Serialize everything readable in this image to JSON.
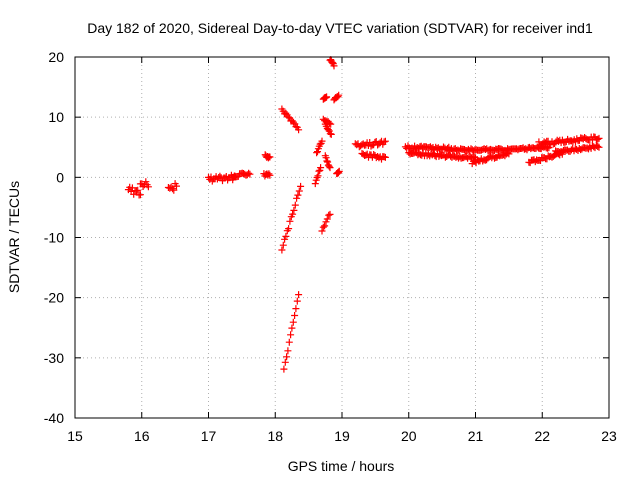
{
  "chart_data": {
    "type": "scatter",
    "title": "Day 182 of 2020, Sidereal Day-to-day VTEC variation (SDTVAR) for receiver ind1",
    "xlabel": "GPS time / hours",
    "ylabel": "SDTVAR / TECUs",
    "xlim": [
      15,
      23
    ],
    "ylim": [
      -40,
      20
    ],
    "xticks": [
      15,
      16,
      17,
      18,
      19,
      20,
      21,
      22,
      23
    ],
    "yticks": [
      -40,
      -30,
      -20,
      -10,
      0,
      10,
      20
    ],
    "xtick_labels": [
      "15",
      "16",
      "17",
      "18",
      "19",
      "20",
      "21",
      "22",
      "23"
    ],
    "ytick_labels": [
      "-40",
      "-30",
      "-20",
      "-10",
      "0",
      "10",
      "20"
    ],
    "grid": true,
    "marker": "+",
    "marker_color": "#ff0000",
    "series": [
      {
        "name": "ind1",
        "segments": [
          {
            "x": [
              15.8,
              15.98
            ],
            "y": [
              -2.0,
              -2.6
            ],
            "jitter": 1.2
          },
          {
            "x": [
              15.98,
              16.1
            ],
            "y": [
              -1.0,
              -1.3
            ],
            "jitter": 1.0
          },
          {
            "x": [
              16.4,
              16.52
            ],
            "y": [
              -1.0,
              -1.6
            ],
            "jitter": 1.5
          },
          {
            "x": [
              17.0,
              17.4
            ],
            "y": [
              -0.3,
              0.0
            ],
            "jitter": 0.8
          },
          {
            "x": [
              17.35,
              17.62
            ],
            "y": [
              0.0,
              0.8
            ],
            "jitter": 0.6
          },
          {
            "x": [
              17.83,
              17.92
            ],
            "y": [
              0.6,
              0.8
            ],
            "jitter": 1.2
          },
          {
            "x": [
              17.85,
              17.92
            ],
            "y": [
              3.6,
              3.2
            ],
            "jitter": 0.4
          },
          {
            "x": [
              18.1,
              18.35
            ],
            "y": [
              11.2,
              8.0
            ],
            "jitter": 0.4
          },
          {
            "x": [
              18.1,
              18.38
            ],
            "y": [
              -12.0,
              -1.5
            ],
            "jitter": 0.6
          },
          {
            "x": [
              18.13,
              18.35
            ],
            "y": [
              -32.0,
              -19.5
            ],
            "jitter": 0.5
          },
          {
            "x": [
              18.6,
              18.68
            ],
            "y": [
              -1.0,
              1.8
            ],
            "jitter": 0.4
          },
          {
            "x": [
              18.62,
              18.7
            ],
            "y": [
              4.0,
              6.2
            ],
            "jitter": 0.4
          },
          {
            "x": [
              18.7,
              18.82
            ],
            "y": [
              -9.0,
              -6.0
            ],
            "jitter": 0.5
          },
          {
            "x": [
              18.72,
              18.83
            ],
            "y": [
              9.6,
              9.0
            ],
            "jitter": 0.3
          },
          {
            "x": [
              18.75,
              18.84
            ],
            "y": [
              8.8,
              7.0
            ],
            "jitter": 0.3
          },
          {
            "x": [
              18.75,
              18.82
            ],
            "y": [
              3.5,
              1.5
            ],
            "jitter": 0.3
          },
          {
            "x": [
              18.72,
              18.77
            ],
            "y": [
              13.0,
              13.4
            ],
            "jitter": 0.2
          },
          {
            "x": [
              18.82,
              18.88
            ],
            "y": [
              19.6,
              18.6
            ],
            "jitter": 0.3
          },
          {
            "x": [
              18.88,
              18.95
            ],
            "y": [
              13.0,
              13.6
            ],
            "jitter": 0.3
          },
          {
            "x": [
              18.92,
              18.96
            ],
            "y": [
              0.6,
              0.9
            ],
            "jitter": 0.2
          },
          {
            "x": [
              19.2,
              19.65
            ],
            "y": [
              5.2,
              5.8
            ],
            "jitter": 0.8
          },
          {
            "x": [
              19.3,
              19.65
            ],
            "y": [
              3.8,
              3.2
            ],
            "jitter": 0.6
          },
          {
            "x": [
              19.95,
              20.6
            ],
            "y": [
              5.0,
              4.8
            ],
            "jitter": 0.5
          },
          {
            "x": [
              20.0,
              21.0
            ],
            "y": [
              4.0,
              3.2
            ],
            "jitter": 0.5
          },
          {
            "x": [
              20.6,
              21.5
            ],
            "y": [
              4.6,
              4.6
            ],
            "jitter": 0.4
          },
          {
            "x": [
              20.95,
              21.5
            ],
            "y": [
              2.5,
              4.0
            ],
            "jitter": 0.5
          },
          {
            "x": [
              21.5,
              22.1
            ],
            "y": [
              4.6,
              5.0
            ],
            "jitter": 0.4
          },
          {
            "x": [
              21.95,
              22.85
            ],
            "y": [
              5.6,
              6.6
            ],
            "jitter": 0.6
          },
          {
            "x": [
              21.8,
              22.3
            ],
            "y": [
              2.5,
              4.0
            ],
            "jitter": 0.5
          },
          {
            "x": [
              22.2,
              22.85
            ],
            "y": [
              4.2,
              5.2
            ],
            "jitter": 0.5
          }
        ]
      }
    ]
  }
}
